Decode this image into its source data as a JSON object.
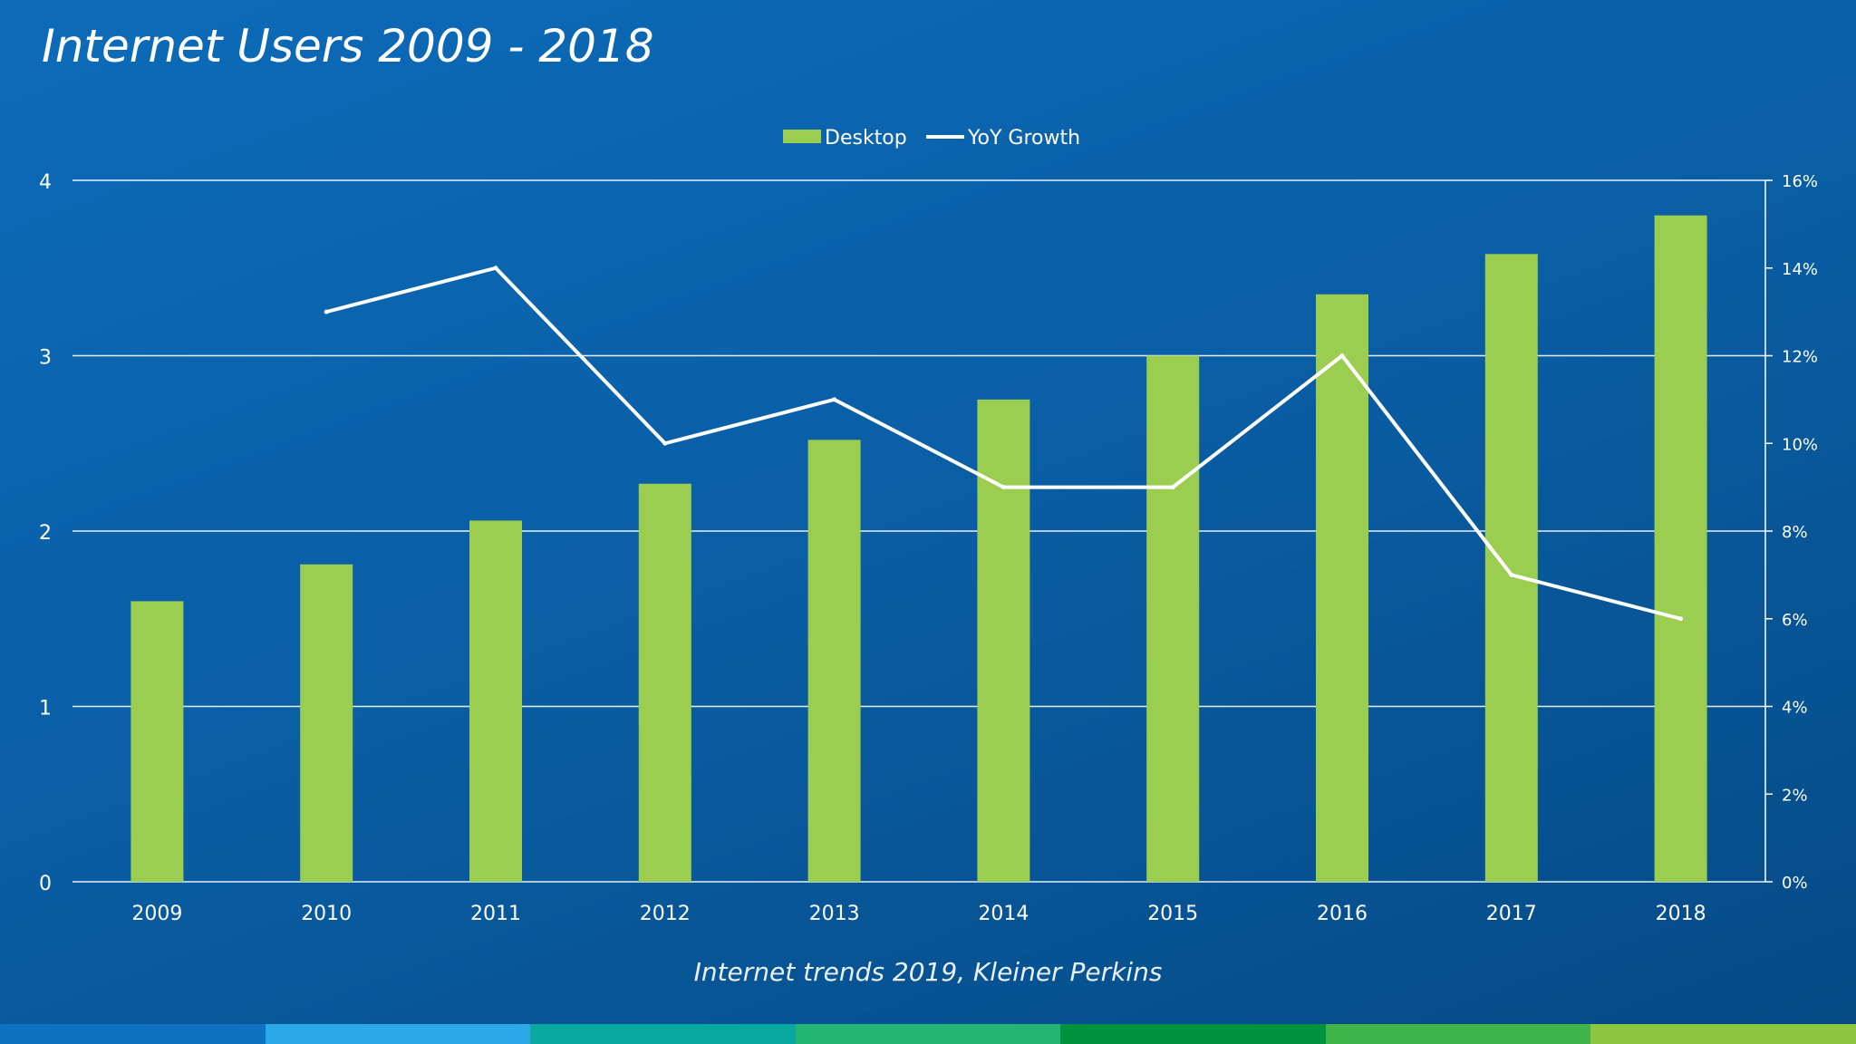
{
  "slide": {
    "title": "Internet Users 2009 - 2018",
    "source": "Internet trends 2019, Kleiner Perkins",
    "strip_colors": [
      "#0f72c0",
      "#2ba8e6",
      "#0aa89e",
      "#22b573",
      "#00923f",
      "#3fb549",
      "#8dc63f"
    ]
  },
  "chart_data": {
    "type": "bar",
    "categories": [
      "2009",
      "2010",
      "2011",
      "2012",
      "2013",
      "2014",
      "2015",
      "2016",
      "2017",
      "2018"
    ],
    "series": [
      {
        "name": "Desktop",
        "type": "bar",
        "axis": "left",
        "color": "#9bcd50",
        "values": [
          1.6,
          1.81,
          2.06,
          2.27,
          2.52,
          2.75,
          3.0,
          3.35,
          3.58,
          3.8
        ]
      },
      {
        "name": "YoY Growth",
        "type": "line",
        "axis": "right",
        "color": "#ffffff",
        "values": [
          null,
          0.13,
          0.14,
          0.1,
          0.11,
          0.09,
          0.09,
          0.12,
          0.07,
          0.06
        ]
      }
    ],
    "ylim": [
      0,
      4
    ],
    "yticks": [
      0,
      1,
      2,
      3,
      4
    ],
    "ytick_labels": [
      "0",
      "1",
      "2",
      "3",
      "4"
    ],
    "y2lim": [
      0,
      0.16
    ],
    "y2ticks": [
      0,
      0.02,
      0.04,
      0.06,
      0.08,
      0.1,
      0.12,
      0.14,
      0.16
    ],
    "y2tick_labels": [
      "0%",
      "2%",
      "4%",
      "6%",
      "8%",
      "10%",
      "12%",
      "14%",
      "16%"
    ],
    "grid": true,
    "legend_position": "top-center"
  }
}
